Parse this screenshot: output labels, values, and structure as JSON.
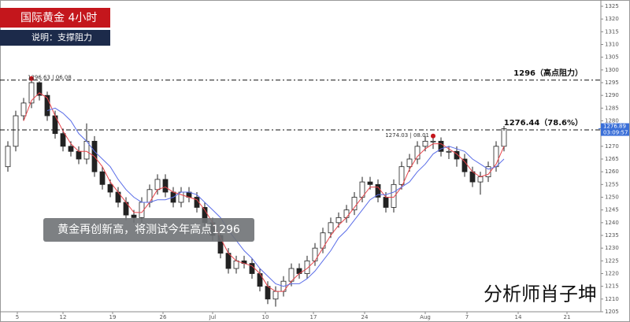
{
  "chart_data": {
    "type": "candlestick",
    "title": "国际黄金  4小时",
    "subtitle": "说明：支撑阻力",
    "annotation": "黄金再创新高，将测试今年高点1296",
    "watermark": "分析师肖子坤",
    "ylim": [
      1205,
      1325
    ],
    "yticks": [
      1205,
      1210,
      1215,
      1220,
      1225,
      1230,
      1235,
      1240,
      1245,
      1250,
      1255,
      1260,
      1265,
      1270,
      1280,
      1285,
      1290,
      1295,
      1300,
      1305,
      1310,
      1315,
      1320,
      1325
    ],
    "xlim": [
      -1,
      75
    ],
    "xticks": [
      {
        "value": 1.2,
        "label": "5"
      },
      {
        "value": 7,
        "label": "12"
      },
      {
        "value": 13.3,
        "label": "19"
      },
      {
        "value": 19.7,
        "label": "26"
      },
      {
        "value": 26,
        "label": "Jul"
      },
      {
        "value": 32.7,
        "label": "10"
      },
      {
        "value": 38.8,
        "label": "17"
      },
      {
        "value": 45.3,
        "label": "24"
      },
      {
        "value": 53,
        "label": "Aug"
      },
      {
        "value": 58.3,
        "label": "7"
      },
      {
        "value": 64.8,
        "label": "14"
      },
      {
        "value": 71,
        "label": "21"
      }
    ],
    "open": [
      1262,
      1270,
      1282,
      1287,
      1295,
      1290,
      1282,
      1275,
      1270,
      1268,
      1265,
      1272,
      1260,
      1255,
      1252,
      1248,
      1243,
      1242,
      1248,
      1253,
      1257,
      1252,
      1248,
      1252,
      1250,
      1246,
      1240,
      1235,
      1228,
      1222,
      1225,
      1224,
      1220,
      1215,
      1210,
      1213,
      1217,
      1222,
      1220,
      1225,
      1230,
      1236,
      1240,
      1242,
      1245,
      1250,
      1256,
      1255,
      1250,
      1246,
      1255,
      1262,
      1265,
      1270,
      1272,
      1272,
      1268,
      1268,
      1265,
      1260,
      1256,
      1258,
      1262,
      1270
    ],
    "high": [
      1272,
      1284,
      1289,
      1296.63,
      1295.5,
      1291.5,
      1284,
      1277,
      1272,
      1270,
      1279,
      1274,
      1262,
      1257,
      1254,
      1250,
      1245,
      1250,
      1255,
      1259,
      1259,
      1254,
      1254,
      1254,
      1252,
      1248,
      1242,
      1237,
      1230,
      1227,
      1227,
      1226,
      1222,
      1217,
      1215,
      1219,
      1224,
      1224,
      1227,
      1232,
      1238,
      1242,
      1244,
      1247,
      1252,
      1258,
      1258,
      1257,
      1252,
      1257,
      1264,
      1267,
      1272,
      1274,
      1274.03,
      1273.5,
      1270,
      1270,
      1267,
      1262,
      1260,
      1264,
      1272,
      1278
    ],
    "low": [
      1260,
      1268,
      1280,
      1285,
      1288,
      1280,
      1273,
      1268,
      1266,
      1263,
      1263,
      1258,
      1253,
      1250,
      1246,
      1241,
      1240,
      1240,
      1246,
      1251,
      1250,
      1246,
      1246,
      1248,
      1244,
      1238,
      1233,
      1226,
      1220,
      1220,
      1222,
      1218,
      1213,
      1208,
      1207,
      1211,
      1215,
      1218,
      1218,
      1223,
      1228,
      1234,
      1238,
      1240,
      1243,
      1248,
      1253,
      1248,
      1244,
      1244,
      1253,
      1260,
      1263,
      1268,
      1269,
      1266,
      1265,
      1262,
      1258,
      1254,
      1251,
      1256,
      1260,
      1268
    ],
    "close": [
      1270,
      1282,
      1287,
      1295,
      1290,
      1282,
      1275,
      1270,
      1268,
      1265,
      1272,
      1260,
      1255,
      1252,
      1248,
      1243,
      1242,
      1248,
      1253,
      1257,
      1252,
      1248,
      1252,
      1250,
      1246,
      1240,
      1235,
      1228,
      1222,
      1225,
      1224,
      1220,
      1215,
      1210,
      1213,
      1217,
      1222,
      1220,
      1225,
      1230,
      1236,
      1240,
      1242,
      1245,
      1250,
      1256,
      1255,
      1250,
      1246,
      1255,
      1262,
      1265,
      1270,
      1272,
      1272,
      1268,
      1268,
      1265,
      1260,
      1256,
      1258,
      1262,
      1270,
      1276.89
    ],
    "series": [
      {
        "color": "#e8434a",
        "values": [
          null,
          null,
          1280,
          1288,
          1291,
          1289,
          1282,
          1276,
          1271,
          1268,
          1268,
          1266,
          1262,
          1256,
          1252,
          1248,
          1244,
          1244,
          1248,
          1253,
          1254,
          1252,
          1251,
          1250,
          1249,
          1245,
          1240,
          1234,
          1228,
          1225,
          1224,
          1223,
          1220,
          1215,
          1213,
          1213,
          1217,
          1220,
          1222,
          1225,
          1230,
          1235,
          1239,
          1242,
          1246,
          1250,
          1254,
          1254,
          1250,
          1250,
          1254,
          1261,
          1266,
          1269,
          1271,
          1271,
          1269,
          1267,
          1264,
          1260,
          1258,
          1259,
          1263,
          1270
        ]
      },
      {
        "color": "#5b6ee8",
        "values": [
          null,
          null,
          null,
          null,
          null,
          1284,
          1285,
          1283,
          1280,
          1275,
          1272,
          1268,
          1265,
          1262,
          1257,
          1253,
          1250,
          1248,
          1248,
          1249,
          1249,
          1250,
          1252,
          1252,
          1251,
          1248,
          1245,
          1242,
          1237,
          1233,
          1229,
          1226,
          1222,
          1219,
          1216,
          1215,
          1216,
          1216,
          1218,
          1221,
          1225,
          1229,
          1234,
          1237,
          1241,
          1245,
          1249,
          1251,
          1251,
          1252,
          1254,
          1256,
          1260,
          1263,
          1267,
          1269,
          1270,
          1269,
          1268,
          1265,
          1263,
          1261,
          1262,
          1265
        ]
      }
    ],
    "hlines": [
      {
        "value": 1296,
        "label": "1296（高点阻力）"
      },
      {
        "value": 1276.44,
        "label": "1276.44（78.6%）"
      }
    ],
    "peaks": [
      {
        "candle": 3,
        "label": "1296.63 | 06.08"
      },
      {
        "candle": 54,
        "label": "1274.03 | 08.01"
      }
    ],
    "price_tag": {
      "value": 1276.89,
      "timer": "03:09:57"
    }
  }
}
